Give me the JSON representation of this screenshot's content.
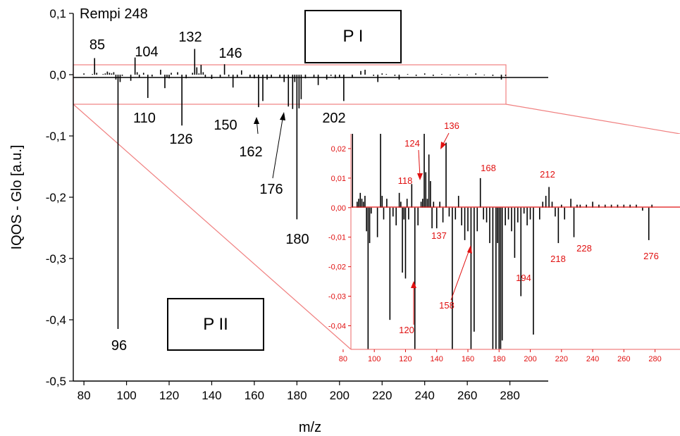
{
  "chart_data": [
    {
      "type": "bar",
      "annotation": "Rempi 248",
      "xlabel": "m/z",
      "ylabel": "IQOS - Glo [a.u.]",
      "xlim": [
        75,
        298
      ],
      "ylim": [
        -0.5,
        0.1
      ],
      "xticks": [
        "80",
        "100",
        "120",
        "140",
        "160",
        "180",
        "200",
        "220",
        "240",
        "260",
        "280"
      ],
      "yticks": [
        "0,1",
        "0,0",
        "-0,1",
        "-0,2",
        "-0,3",
        "-0,4",
        "-0,5"
      ],
      "series": [
        {
          "x": [
            80,
            84,
            85,
            86,
            89,
            90,
            91,
            92,
            93,
            94,
            95,
            96,
            97,
            98,
            102,
            104,
            105,
            106,
            108,
            110,
            112,
            116,
            118,
            119,
            120,
            121,
            124,
            126,
            128,
            131,
            132,
            133,
            134,
            135,
            136,
            137,
            140,
            144,
            146,
            148,
            150,
            152,
            154,
            158,
            160,
            162,
            164,
            166,
            168,
            172,
            174,
            176,
            178,
            179,
            180,
            181,
            182,
            184,
            188,
            190,
            194,
            196,
            198,
            200,
            202,
            206,
            210,
            212,
            216,
            218,
            220,
            222,
            226,
            228,
            232,
            236,
            240,
            244,
            248,
            252,
            256,
            260,
            264,
            268,
            272,
            276,
            278
          ],
          "y": [
            0.002,
            0.001,
            0.027,
            0.003,
            0.001,
            0.002,
            0.005,
            0.003,
            0.002,
            0.004,
            -0.008,
            -0.415,
            -0.012,
            -0.002,
            -0.01,
            0.028,
            0.004,
            -0.004,
            0.003,
            -0.038,
            -0.003,
            0.008,
            -0.022,
            -0.004,
            -0.006,
            0.003,
            0.004,
            -0.083,
            -0.006,
            0.003,
            0.042,
            0.012,
            0.002,
            0.016,
            0.004,
            -0.004,
            -0.007,
            -0.004,
            0.017,
            -0.003,
            -0.021,
            -0.004,
            0.007,
            -0.004,
            -0.006,
            -0.053,
            -0.043,
            -0.008,
            -0.004,
            -0.005,
            -0.012,
            -0.052,
            -0.056,
            -0.012,
            -0.236,
            -0.055,
            -0.04,
            -0.006,
            -0.005,
            -0.017,
            -0.008,
            -0.002,
            -0.006,
            -0.004,
            -0.043,
            -0.004,
            0.006,
            0.008,
            -0.002,
            -0.012,
            0.002,
            0.001,
            -0.002,
            -0.008,
            0.001,
            -0.002,
            0.002,
            -0.002,
            0.001,
            -0.001,
            0.001,
            -0.001,
            0.002,
            -0.001,
            -0.002,
            -0.008,
            -0.002
          ]
        }
      ],
      "peak_labels": [
        "85",
        "104",
        "132",
        "146",
        "110",
        "126",
        "150",
        "162",
        "176",
        "180",
        "202",
        "96"
      ]
    },
    {
      "type": "bar",
      "inset": true,
      "xlim": [
        85,
        296
      ],
      "ylim": [
        -0.048,
        0.025
      ],
      "xticks": [
        "80",
        "100",
        "120",
        "140",
        "160",
        "180",
        "200",
        "220",
        "240",
        "260",
        "280"
      ],
      "yticks": [
        "0,02",
        "0,01",
        "0,00",
        "-0,01",
        "-0,02",
        "-0,03",
        "-0,04"
      ],
      "series": [
        {
          "x": [
            86,
            89,
            90,
            91,
            92,
            93,
            94,
            95,
            96,
            97,
            98,
            102,
            104,
            105,
            106,
            108,
            110,
            112,
            114,
            116,
            117,
            118,
            119,
            120,
            121,
            122,
            124,
            126,
            128,
            130,
            131,
            132,
            133,
            134,
            135,
            136,
            137,
            138,
            140,
            142,
            144,
            146,
            148,
            150,
            152,
            154,
            156,
            158,
            160,
            162,
            164,
            166,
            168,
            170,
            172,
            174,
            176,
            178,
            179,
            180,
            181,
            182,
            184,
            186,
            188,
            190,
            192,
            194,
            196,
            198,
            200,
            202,
            206,
            208,
            210,
            212,
            214,
            216,
            218,
            220,
            222,
            226,
            228,
            230,
            232,
            236,
            240,
            244,
            248,
            252,
            256,
            260,
            264,
            268,
            272,
            276,
            278
          ],
          "y": [
            0.025,
            0.002,
            0.003,
            0.005,
            0.003,
            0.002,
            0.004,
            -0.008,
            -0.048,
            -0.012,
            -0.002,
            -0.01,
            0.025,
            0.004,
            -0.004,
            0.003,
            -0.038,
            -0.003,
            -0.006,
            0.005,
            0.002,
            -0.022,
            -0.004,
            -0.024,
            0.003,
            -0.004,
            0.008,
            -0.048,
            -0.006,
            0.002,
            0.003,
            0.025,
            0.012,
            0.003,
            0.018,
            0.009,
            -0.007,
            0.002,
            -0.007,
            0.002,
            -0.005,
            0.022,
            -0.003,
            -0.048,
            -0.004,
            0.004,
            -0.006,
            -0.011,
            -0.008,
            -0.048,
            -0.042,
            -0.008,
            0.01,
            -0.004,
            -0.005,
            -0.012,
            -0.048,
            -0.048,
            -0.012,
            -0.048,
            -0.048,
            -0.045,
            -0.006,
            -0.004,
            -0.008,
            -0.017,
            -0.005,
            -0.03,
            -0.002,
            -0.006,
            -0.004,
            -0.043,
            -0.004,
            0.002,
            0.004,
            0.007,
            0.002,
            -0.003,
            -0.012,
            0.001,
            -0.004,
            0.003,
            -0.01,
            0.001,
            0.001,
            0.001,
            0.002,
            0.001,
            0.001,
            0.001,
            0.001,
            0.001,
            0.001,
            0.001,
            -0.001,
            -0.011,
            0.001
          ]
        }
      ],
      "peak_labels": [
        "124",
        "136",
        "118",
        "168",
        "212",
        "137",
        "218",
        "228",
        "276",
        "194",
        "158",
        "120"
      ]
    }
  ],
  "boxes": {
    "p1": "P I",
    "p2": "P II"
  },
  "colors": {
    "main": "#000000",
    "inset_accent": "#e01010",
    "zoom_box": "#f08080"
  }
}
